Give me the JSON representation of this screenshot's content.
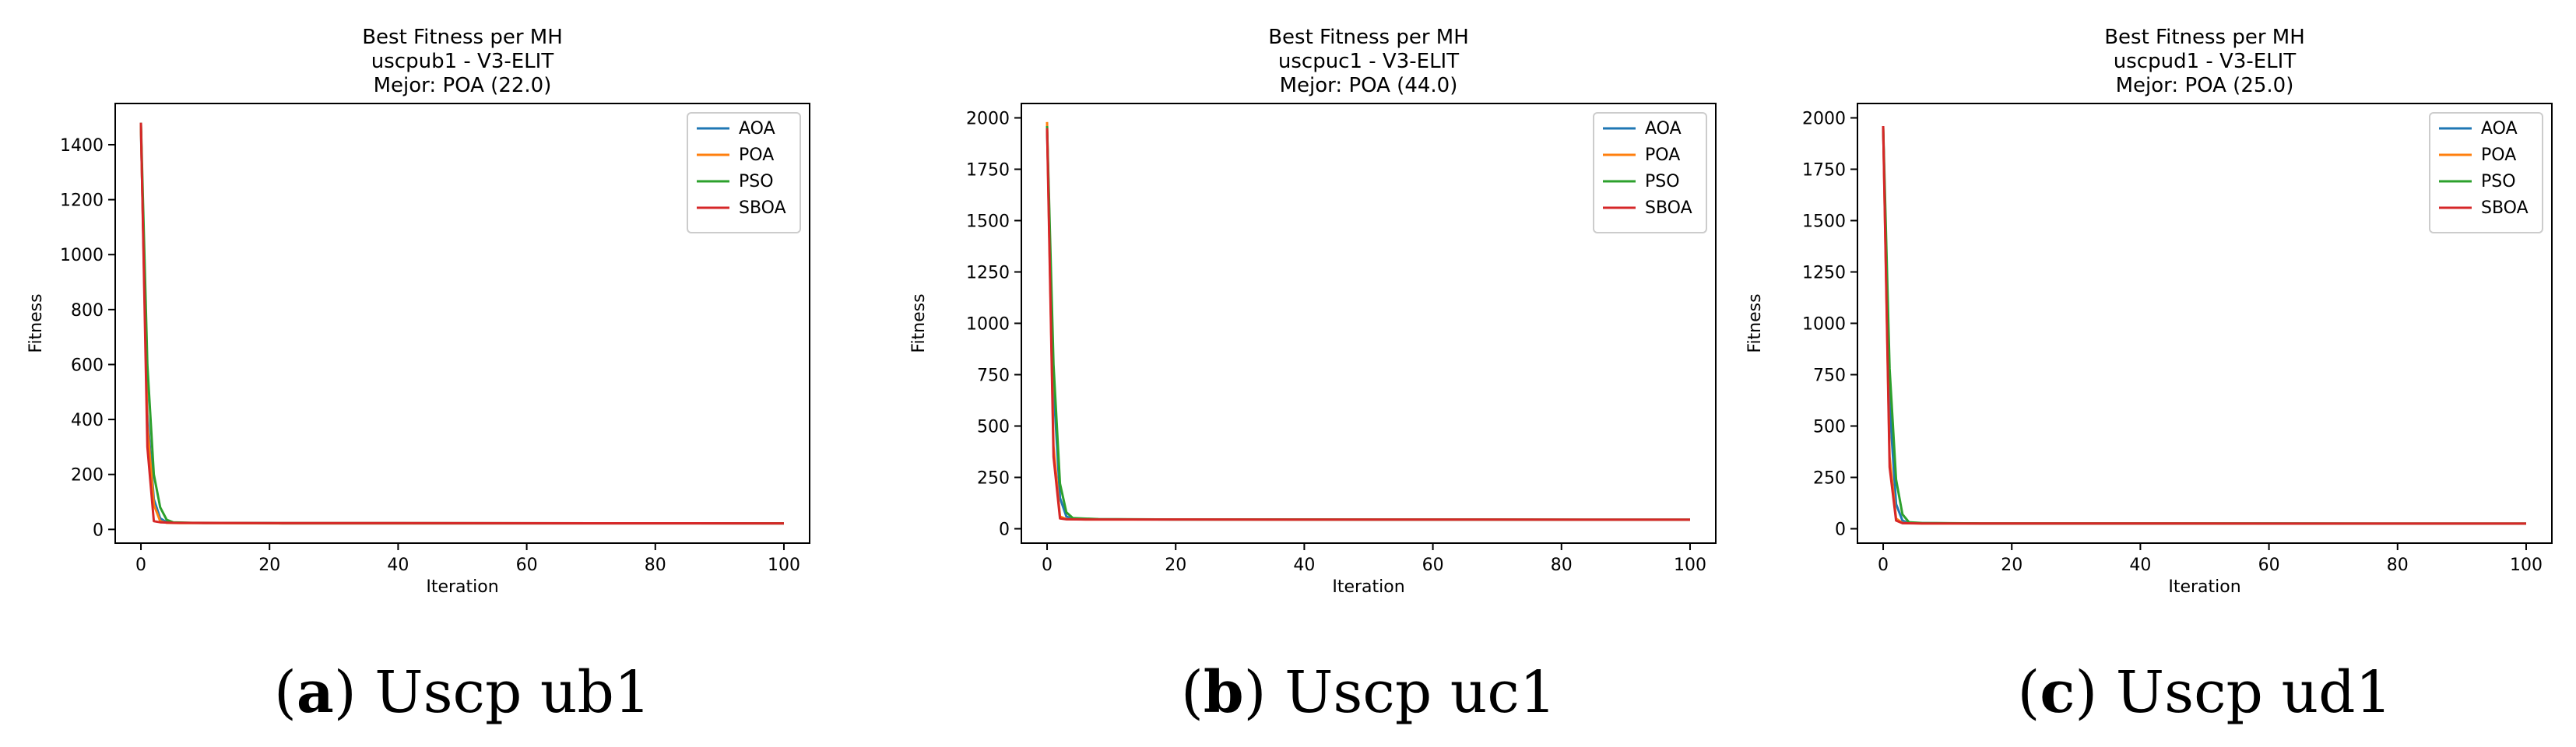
{
  "chart_data": [
    {
      "type": "line",
      "title_lines": [
        "Best Fitness per MH",
        "uscpub1 - V3-ELIT",
        "Mejor: POA (22.0)"
      ],
      "xlabel": "Iteration",
      "ylabel": "Fitness",
      "xlim": [
        -4,
        104
      ],
      "ylim": [
        -50,
        1550
      ],
      "xticks": [
        0,
        20,
        40,
        60,
        80,
        100
      ],
      "yticks": [
        0,
        200,
        400,
        600,
        800,
        1000,
        1200,
        1400
      ],
      "legend_position": "top-right",
      "caption": {
        "letter": "a",
        "text": "Uscp ub1"
      },
      "series": [
        {
          "name": "AOA",
          "color": "#1f77b4",
          "points": [
            [
              0,
              1460
            ],
            [
              1,
              420
            ],
            [
              2,
              110
            ],
            [
              3,
              40
            ],
            [
              4,
              26
            ],
            [
              6,
              24
            ],
            [
              10,
              23
            ],
            [
              20,
              23
            ],
            [
              22,
              22
            ],
            [
              100,
              22
            ]
          ]
        },
        {
          "name": "POA",
          "color": "#ff7f0e",
          "points": [
            [
              0,
              1470
            ],
            [
              1,
              380
            ],
            [
              2,
              90
            ],
            [
              3,
              30
            ],
            [
              4,
              24
            ],
            [
              6,
              23
            ],
            [
              22,
              22
            ],
            [
              100,
              22
            ]
          ]
        },
        {
          "name": "PSO",
          "color": "#2ca02c",
          "points": [
            [
              0,
              1480
            ],
            [
              1,
              600
            ],
            [
              2,
              200
            ],
            [
              3,
              80
            ],
            [
              4,
              35
            ],
            [
              5,
              26
            ],
            [
              8,
              24
            ],
            [
              20,
              23
            ],
            [
              100,
              22
            ]
          ]
        },
        {
          "name": "SBOA",
          "color": "#d62728",
          "points": [
            [
              0,
              1480
            ],
            [
              1,
              300
            ],
            [
              2,
              30
            ],
            [
              3,
              26
            ],
            [
              5,
              24
            ],
            [
              20,
              23
            ],
            [
              100,
              22
            ]
          ]
        }
      ]
    },
    {
      "type": "line",
      "title_lines": [
        "Best Fitness per MH",
        "uscpuc1 - V3-ELIT",
        "Mejor: POA (44.0)"
      ],
      "xlabel": "Iteration",
      "ylabel": "Fitness",
      "xlim": [
        -4,
        104
      ],
      "ylim": [
        -70,
        2070
      ],
      "xticks": [
        0,
        20,
        40,
        60,
        80,
        100
      ],
      "yticks": [
        0,
        250,
        500,
        750,
        1000,
        1250,
        1500,
        1750,
        2000
      ],
      "legend_position": "top-right",
      "caption": {
        "letter": "b",
        "text": "Uscp uc1"
      },
      "series": [
        {
          "name": "AOA",
          "color": "#1f77b4",
          "points": [
            [
              0,
              1940
            ],
            [
              1,
              700
            ],
            [
              2,
              150
            ],
            [
              3,
              60
            ],
            [
              4,
              47
            ],
            [
              8,
              46
            ],
            [
              18,
              45
            ],
            [
              100,
              44
            ]
          ]
        },
        {
          "name": "POA",
          "color": "#ff7f0e",
          "points": [
            [
              0,
              1980
            ],
            [
              1,
              400
            ],
            [
              2,
              60
            ],
            [
              3,
              47
            ],
            [
              6,
              45
            ],
            [
              100,
              44
            ]
          ]
        },
        {
          "name": "PSO",
          "color": "#2ca02c",
          "points": [
            [
              0,
              1960
            ],
            [
              1,
              800
            ],
            [
              2,
              220
            ],
            [
              3,
              80
            ],
            [
              4,
              52
            ],
            [
              8,
              47
            ],
            [
              20,
              45
            ],
            [
              100,
              44
            ]
          ]
        },
        {
          "name": "SBOA",
          "color": "#d62728",
          "points": [
            [
              0,
              1950
            ],
            [
              1,
              350
            ],
            [
              2,
              50
            ],
            [
              3,
              46
            ],
            [
              6,
              45
            ],
            [
              100,
              44
            ]
          ]
        }
      ]
    },
    {
      "type": "line",
      "title_lines": [
        "Best Fitness per MH",
        "uscpud1 - V3-ELIT",
        "Mejor: POA (25.0)"
      ],
      "xlabel": "Iteration",
      "ylabel": "Fitness",
      "xlim": [
        -4,
        104
      ],
      "ylim": [
        -70,
        2070
      ],
      "xticks": [
        0,
        20,
        40,
        60,
        80,
        100
      ],
      "yticks": [
        0,
        250,
        500,
        750,
        1000,
        1250,
        1500,
        1750,
        2000
      ],
      "legend_position": "top-right",
      "caption": {
        "letter": "c",
        "text": "Uscp ud1"
      },
      "series": [
        {
          "name": "AOA",
          "color": "#1f77b4",
          "points": [
            [
              0,
              1950
            ],
            [
              1,
              600
            ],
            [
              2,
              120
            ],
            [
              3,
              40
            ],
            [
              4,
              28
            ],
            [
              8,
              27
            ],
            [
              15,
              26
            ],
            [
              100,
              25
            ]
          ]
        },
        {
          "name": "POA",
          "color": "#ff7f0e",
          "points": [
            [
              0,
              1960
            ],
            [
              1,
              350
            ],
            [
              2,
              50
            ],
            [
              3,
              28
            ],
            [
              6,
              26
            ],
            [
              100,
              25
            ]
          ]
        },
        {
          "name": "PSO",
          "color": "#2ca02c",
          "points": [
            [
              0,
              1960
            ],
            [
              1,
              780
            ],
            [
              2,
              240
            ],
            [
              3,
              70
            ],
            [
              4,
              32
            ],
            [
              6,
              28
            ],
            [
              15,
              26
            ],
            [
              100,
              25
            ]
          ]
        },
        {
          "name": "SBOA",
          "color": "#d62728",
          "points": [
            [
              0,
              1960
            ],
            [
              1,
              300
            ],
            [
              2,
              40
            ],
            [
              3,
              27
            ],
            [
              6,
              26
            ],
            [
              100,
              25
            ]
          ]
        }
      ]
    }
  ]
}
